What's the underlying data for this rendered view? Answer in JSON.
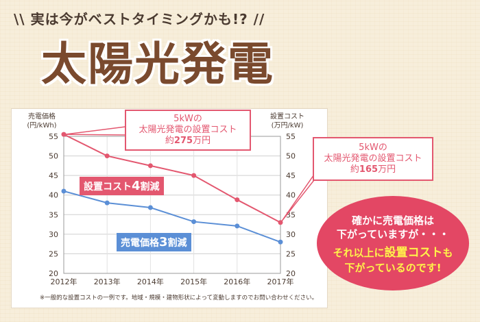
{
  "header": {
    "tagline": "\\\\ 実は今がベストタイミングかも!? //",
    "title": "太陽光発電"
  },
  "chart_data": {
    "type": "line",
    "x": [
      "2012年",
      "2013年",
      "2014年",
      "2015年",
      "2016年",
      "2017年"
    ],
    "series": [
      {
        "name": "設置コスト",
        "axis": "right",
        "values": [
          55.5,
          50,
          47.5,
          45,
          38.8,
          33
        ],
        "color": "#e3576f"
      },
      {
        "name": "売電価格",
        "axis": "left",
        "values": [
          41,
          38,
          36.8,
          33.2,
          32.1,
          28
        ],
        "color": "#5b8fd6"
      }
    ],
    "ylabel_left": "売電価格\n(円/kWh)",
    "ylabel_right": "設置コスト\n(万円/kW)",
    "ylim": [
      20,
      55
    ],
    "yticks": [
      20,
      25,
      30,
      35,
      40,
      45,
      50,
      55
    ],
    "grid": true
  },
  "annotations": {
    "callout_2012": {
      "line1": "5kWの",
      "line2": "太陽光発電の設置コスト",
      "prefix": "約",
      "value": "275",
      "suffix": "万円"
    },
    "callout_2017": {
      "line1": "5kWの",
      "line2": "太陽光発電の設置コスト",
      "prefix": "約",
      "value": "165",
      "suffix": "万円"
    },
    "cost_label": {
      "text": "設置コスト",
      "num": "4",
      "suffix": "割減"
    },
    "price_label": {
      "text": "売電価格",
      "num": "3",
      "suffix": "割減"
    }
  },
  "bubble": {
    "line1": "確かに売電価格は",
    "line2": "下がっていますが・・・",
    "line3a": "それ以上に",
    "line3b": "設置コスト",
    "line3c": "も",
    "line4": "下がっているのです!"
  },
  "footnote": "※一般的な設置コストの一例です。地域・規模・建物形状によって変動しますのでお問い合わせください。"
}
